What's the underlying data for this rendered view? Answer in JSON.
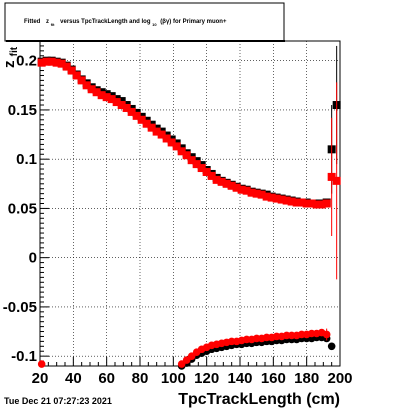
{
  "title": {
    "prefix": "Fitted",
    "symbol": "z",
    "symbol_sub": "fit",
    "middle": "versus TpcTrackLength and log",
    "log_sub": "10",
    "suffix": "(βγ) for Primary muon+"
  },
  "timestamp": "Tue Dec 21 07:27:23 2021",
  "chart_data": {
    "type": "scatter",
    "title": "Fitted z_fit versus TpcTrackLength and log10(βγ) for Primary muon+",
    "xlabel": "TpcTrackLength (cm)",
    "ylabel": "z_fit",
    "ylabel_display": "z",
    "ylabel_sub": "fit",
    "xlim": [
      20,
      200
    ],
    "ylim": [
      -0.11,
      0.22
    ],
    "xticks": [
      20,
      40,
      60,
      80,
      100,
      120,
      140,
      160,
      180,
      200
    ],
    "xtick_labels": [
      "20",
      "40",
      "60",
      "80",
      "100",
      "120",
      "140",
      "160",
      "180",
      "200"
    ],
    "yticks": [
      -0.1,
      -0.05,
      0,
      0.05,
      0.1,
      0.15,
      0.2
    ],
    "ytick_labels": [
      "-0.1",
      "-0.05",
      "0",
      "0.05",
      "0.1",
      "0.15",
      "0.2"
    ],
    "grid": true,
    "colors": {
      "black": "#000000",
      "red": "#ff0000"
    },
    "series": [
      {
        "color": "#000000",
        "marker": "square",
        "x": [
          21,
          24,
          27,
          30,
          33,
          36,
          39,
          42,
          45,
          48,
          51,
          54,
          57,
          60,
          63,
          66,
          69,
          72,
          75,
          78,
          81,
          84,
          87,
          90,
          93,
          96,
          99,
          102,
          105,
          108,
          111,
          114,
          117,
          120,
          123,
          126,
          129,
          132,
          135,
          138,
          141,
          144,
          147,
          150,
          153,
          156,
          159,
          162,
          165,
          168,
          171,
          174,
          177,
          180,
          183,
          186,
          189,
          192,
          195,
          198
        ],
        "y": [
          0.199,
          0.2,
          0.2,
          0.199,
          0.198,
          0.195,
          0.191,
          0.186,
          0.181,
          0.177,
          0.173,
          0.17,
          0.168,
          0.166,
          0.164,
          0.161,
          0.159,
          0.155,
          0.151,
          0.147,
          0.143,
          0.139,
          0.135,
          0.131,
          0.128,
          0.124,
          0.12,
          0.116,
          0.111,
          0.106,
          0.102,
          0.098,
          0.094,
          0.089,
          0.085,
          0.081,
          0.078,
          0.076,
          0.074,
          0.072,
          0.07,
          0.069,
          0.067,
          0.066,
          0.065,
          0.064,
          0.062,
          0.061,
          0.06,
          0.059,
          0.058,
          0.057,
          0.056,
          0.056,
          0.055,
          0.055,
          0.055,
          0.056,
          0.11,
          0.155
        ],
        "yerr": [
          0.002,
          0.002,
          0.002,
          0.002,
          0.002,
          0.002,
          0.002,
          0.002,
          0.002,
          0.002,
          0.002,
          0.002,
          0.002,
          0.002,
          0.002,
          0.002,
          0.002,
          0.002,
          0.002,
          0.002,
          0.002,
          0.002,
          0.002,
          0.002,
          0.002,
          0.002,
          0.002,
          0.002,
          0.002,
          0.002,
          0.002,
          0.002,
          0.002,
          0.002,
          0.002,
          0.002,
          0.002,
          0.002,
          0.002,
          0.002,
          0.002,
          0.002,
          0.002,
          0.002,
          0.002,
          0.002,
          0.002,
          0.002,
          0.002,
          0.002,
          0.002,
          0.002,
          0.002,
          0.002,
          0.002,
          0.002,
          0.002,
          0.002,
          0.045,
          0.06
        ]
      },
      {
        "color": "#ff0000",
        "marker": "square",
        "x": [
          21,
          24,
          27,
          30,
          33,
          36,
          39,
          42,
          45,
          48,
          51,
          54,
          57,
          60,
          63,
          66,
          69,
          72,
          75,
          78,
          81,
          84,
          87,
          90,
          93,
          96,
          99,
          102,
          105,
          108,
          111,
          114,
          117,
          120,
          123,
          126,
          129,
          132,
          135,
          138,
          141,
          144,
          147,
          150,
          153,
          156,
          159,
          162,
          165,
          168,
          171,
          174,
          177,
          180,
          183,
          186,
          189,
          192,
          195,
          198
        ],
        "y": [
          0.198,
          0.199,
          0.199,
          0.198,
          0.197,
          0.194,
          0.19,
          0.185,
          0.18,
          0.175,
          0.171,
          0.168,
          0.165,
          0.163,
          0.161,
          0.158,
          0.155,
          0.152,
          0.148,
          0.144,
          0.14,
          0.136,
          0.132,
          0.128,
          0.125,
          0.121,
          0.117,
          0.113,
          0.108,
          0.104,
          0.099,
          0.095,
          0.091,
          0.087,
          0.083,
          0.079,
          0.077,
          0.075,
          0.073,
          0.071,
          0.069,
          0.068,
          0.066,
          0.065,
          0.064,
          0.062,
          0.061,
          0.06,
          0.059,
          0.058,
          0.057,
          0.056,
          0.056,
          0.055,
          0.055,
          0.054,
          0.054,
          0.055,
          0.082,
          0.078
        ],
        "yerr": [
          0.002,
          0.002,
          0.002,
          0.002,
          0.002,
          0.002,
          0.002,
          0.002,
          0.002,
          0.002,
          0.002,
          0.002,
          0.002,
          0.002,
          0.002,
          0.002,
          0.002,
          0.002,
          0.002,
          0.002,
          0.002,
          0.002,
          0.002,
          0.002,
          0.002,
          0.002,
          0.002,
          0.002,
          0.002,
          0.002,
          0.002,
          0.002,
          0.002,
          0.002,
          0.002,
          0.002,
          0.002,
          0.002,
          0.002,
          0.002,
          0.002,
          0.002,
          0.002,
          0.002,
          0.002,
          0.002,
          0.002,
          0.002,
          0.002,
          0.002,
          0.002,
          0.002,
          0.002,
          0.002,
          0.002,
          0.002,
          0.002,
          0.002,
          0.06,
          0.1
        ]
      },
      {
        "color": "#000000",
        "marker": "circle",
        "x": [
          105,
          108,
          111,
          114,
          117,
          120,
          123,
          126,
          129,
          132,
          135,
          138,
          141,
          144,
          147,
          150,
          153,
          156,
          159,
          162,
          165,
          168,
          171,
          174,
          177,
          180,
          183,
          186,
          189,
          192,
          195
        ],
        "y": [
          -0.11,
          -0.107,
          -0.103,
          -0.099,
          -0.097,
          -0.095,
          -0.093,
          -0.092,
          -0.091,
          -0.09,
          -0.089,
          -0.088,
          -0.088,
          -0.087,
          -0.087,
          -0.086,
          -0.086,
          -0.085,
          -0.085,
          -0.084,
          -0.084,
          -0.083,
          -0.083,
          -0.083,
          -0.082,
          -0.082,
          -0.082,
          -0.081,
          -0.081,
          -0.082,
          -0.09
        ],
        "yerr": [
          0.002,
          0.002,
          0.002,
          0.002,
          0.002,
          0.002,
          0.002,
          0.002,
          0.002,
          0.002,
          0.002,
          0.002,
          0.002,
          0.002,
          0.002,
          0.002,
          0.002,
          0.002,
          0.002,
          0.002,
          0.002,
          0.002,
          0.002,
          0.002,
          0.002,
          0.002,
          0.002,
          0.002,
          0.002,
          0.002,
          0.002
        ]
      },
      {
        "color": "#ff0000",
        "marker": "circle",
        "x": [
          21,
          105,
          108,
          111,
          114,
          117,
          120,
          123,
          126,
          129,
          132,
          135,
          138,
          141,
          144,
          147,
          150,
          153,
          156,
          159,
          162,
          165,
          168,
          171,
          174,
          177,
          180,
          183,
          186,
          189,
          192
        ],
        "y": [
          -0.108,
          -0.108,
          -0.104,
          -0.1,
          -0.096,
          -0.093,
          -0.091,
          -0.089,
          -0.088,
          -0.087,
          -0.086,
          -0.085,
          -0.085,
          -0.084,
          -0.083,
          -0.083,
          -0.082,
          -0.082,
          -0.081,
          -0.081,
          -0.08,
          -0.08,
          -0.079,
          -0.079,
          -0.079,
          -0.078,
          -0.078,
          -0.077,
          -0.077,
          -0.076,
          -0.078
        ],
        "yerr": [
          0.002,
          0.002,
          0.002,
          0.002,
          0.002,
          0.002,
          0.002,
          0.002,
          0.002,
          0.002,
          0.002,
          0.002,
          0.002,
          0.002,
          0.002,
          0.002,
          0.002,
          0.002,
          0.002,
          0.002,
          0.002,
          0.002,
          0.002,
          0.002,
          0.002,
          0.002,
          0.002,
          0.002,
          0.002,
          0.003,
          0.006
        ]
      }
    ]
  }
}
